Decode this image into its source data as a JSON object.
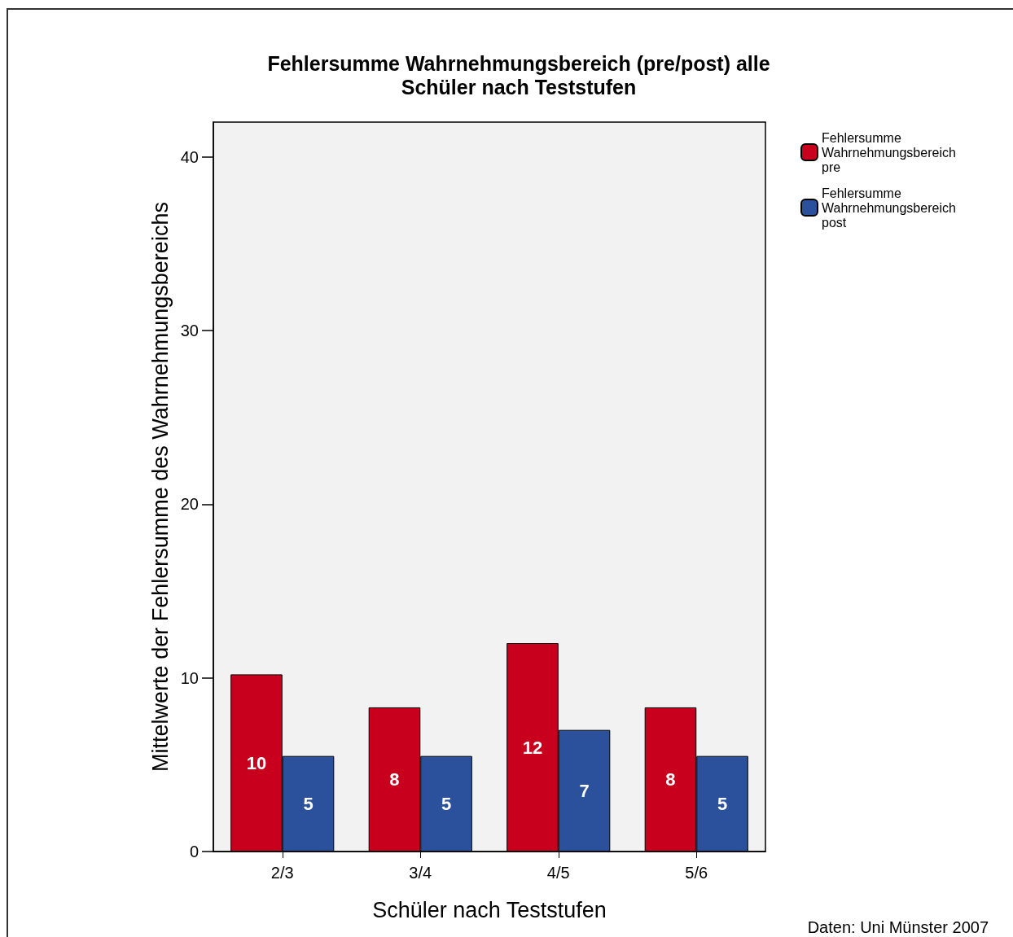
{
  "chart_data": {
    "type": "bar",
    "title": "Fehlersumme Wahrnehmungsbereich (pre/post) alle\nSchüler nach Teststufen",
    "xlabel": "Schüler nach Teststufen",
    "ylabel": "Mittelwerte der Fehlersumme des Wahrnehmungsbereichs",
    "categories": [
      "2/3",
      "3/4",
      "4/5",
      "5/6"
    ],
    "series": [
      {
        "name": "Fehlersumme Wahrnehmungsbereich pre",
        "color": "#c8001e",
        "values": [
          10.2,
          8.3,
          12.0,
          8.3
        ],
        "value_labels": [
          "10",
          "8",
          "12",
          "8"
        ]
      },
      {
        "name": "Fehlersumme Wahrnehmungsbereich post",
        "color": "#2b519c",
        "values": [
          5.5,
          5.5,
          7.0,
          5.5
        ],
        "value_labels": [
          "5",
          "5",
          "7",
          "5"
        ]
      }
    ],
    "ylim": [
      0,
      42
    ],
    "yticks": [
      0,
      10,
      20,
      30,
      40
    ],
    "grid": false,
    "legend": "top right",
    "annotations": [
      "Daten: Uni Münster 2007"
    ]
  }
}
